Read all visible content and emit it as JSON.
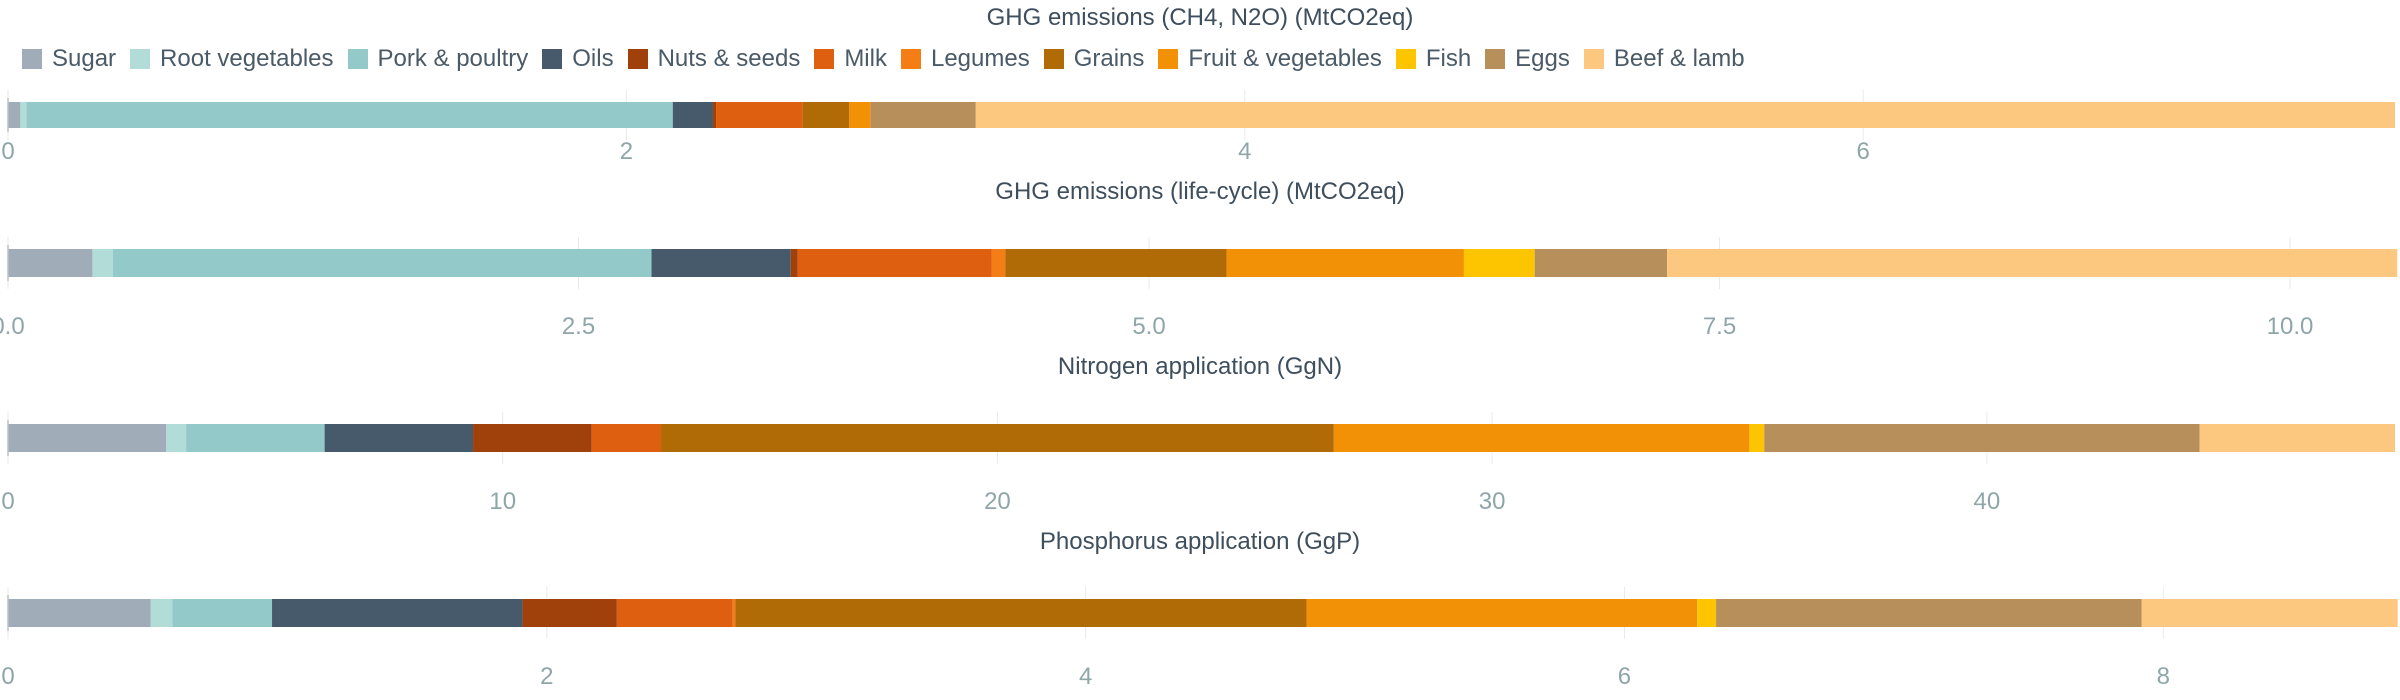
{
  "colors": {
    "Sugar": "#a0adb8",
    "Root vegetables": "#b2dcd8",
    "Pork & poultry": "#94c9c9",
    "Oils": "#465a6c",
    "Nuts & seeds": "#a0410b",
    "Milk": "#df5f10",
    "Legumes": "#f47d15",
    "Grains": "#b06b06",
    "Fruit & vegetables": "#f39106",
    "Fish": "#fcc500",
    "Eggs": "#b78f5a",
    "Beef & lamb": "#fcc87f"
  },
  "legend": [
    "Sugar",
    "Root vegetables",
    "Pork & poultry",
    "Oils",
    "Nuts & seeds",
    "Milk",
    "Legumes",
    "Grains",
    "Fruit & vegetables",
    "Fish",
    "Eggs",
    "Beef & lamb"
  ],
  "chart_data": [
    {
      "type": "bar",
      "orientation": "horizontal-stacked",
      "title": "GHG emissions (CH4, N2O) (MtCO2eq)",
      "xlim": [
        0,
        7.72
      ],
      "ticks": [
        0,
        2,
        4,
        6
      ],
      "tick_labels": [
        "0",
        "2",
        "4",
        "6"
      ],
      "series": [
        {
          "name": "Sugar",
          "value": 0.04
        },
        {
          "name": "Root vegetables",
          "value": 0.02
        },
        {
          "name": "Pork & poultry",
          "value": 2.09
        },
        {
          "name": "Oils",
          "value": 0.13
        },
        {
          "name": "Nuts & seeds",
          "value": 0.01
        },
        {
          "name": "Milk",
          "value": 0.28
        },
        {
          "name": "Legumes",
          "value": 0.0
        },
        {
          "name": "Grains",
          "value": 0.15
        },
        {
          "name": "Fruit & vegetables",
          "value": 0.07
        },
        {
          "name": "Fish",
          "value": 0.0
        },
        {
          "name": "Eggs",
          "value": 0.34
        },
        {
          "name": "Beef & lamb",
          "value": 4.59
        }
      ]
    },
    {
      "type": "bar",
      "orientation": "horizontal-stacked",
      "title": "GHG emissions (life-cycle) (MtCO2eq)",
      "xlim": [
        0,
        10.46
      ],
      "ticks": [
        0,
        2.5,
        5,
        7.5,
        10
      ],
      "tick_labels": [
        "0.0",
        "2.5",
        "5.0",
        "7.5",
        "10.0"
      ],
      "series": [
        {
          "name": "Sugar",
          "value": 0.37
        },
        {
          "name": "Root vegetables",
          "value": 0.09
        },
        {
          "name": "Pork & poultry",
          "value": 2.36
        },
        {
          "name": "Oils",
          "value": 0.61
        },
        {
          "name": "Nuts & seeds",
          "value": 0.03
        },
        {
          "name": "Milk",
          "value": 0.85
        },
        {
          "name": "Legumes",
          "value": 0.06
        },
        {
          "name": "Grains",
          "value": 0.97
        },
        {
          "name": "Fruit & vegetables",
          "value": 1.04
        },
        {
          "name": "Fish",
          "value": 0.31
        },
        {
          "name": "Eggs",
          "value": 0.58
        },
        {
          "name": "Beef & lamb",
          "value": 3.2
        }
      ]
    },
    {
      "type": "bar",
      "orientation": "horizontal-stacked",
      "title": "Nitrogen application (GgN)",
      "xlim": [
        0,
        48.25
      ],
      "ticks": [
        0,
        10,
        20,
        30,
        40
      ],
      "tick_labels": [
        "0",
        "10",
        "20",
        "30",
        "40"
      ],
      "series": [
        {
          "name": "Sugar",
          "value": 3.2
        },
        {
          "name": "Root vegetables",
          "value": 0.4
        },
        {
          "name": "Pork & poultry",
          "value": 2.8
        },
        {
          "name": "Oils",
          "value": 3.0
        },
        {
          "name": "Nuts & seeds",
          "value": 2.4
        },
        {
          "name": "Milk",
          "value": 1.4
        },
        {
          "name": "Legumes",
          "value": 0.0
        },
        {
          "name": "Grains",
          "value": 13.6
        },
        {
          "name": "Fruit & vegetables",
          "value": 8.4
        },
        {
          "name": "Fish",
          "value": 0.3
        },
        {
          "name": "Eggs",
          "value": 8.8
        },
        {
          "name": "Beef & lamb",
          "value": 3.95
        }
      ]
    },
    {
      "type": "bar",
      "orientation": "horizontal-stacked",
      "title": "Phosphorus application (GgP)",
      "xlim": [
        0,
        8.86
      ],
      "ticks": [
        0,
        2,
        4,
        6,
        8
      ],
      "tick_labels": [
        "0",
        "2",
        "4",
        "6",
        "8"
      ],
      "series": [
        {
          "name": "Sugar",
          "value": 0.53
        },
        {
          "name": "Root vegetables",
          "value": 0.08
        },
        {
          "name": "Pork & poultry",
          "value": 0.37
        },
        {
          "name": "Oils",
          "value": 0.93
        },
        {
          "name": "Nuts & seeds",
          "value": 0.35
        },
        {
          "name": "Milk",
          "value": 0.43
        },
        {
          "name": "Legumes",
          "value": 0.01
        },
        {
          "name": "Grains",
          "value": 2.12
        },
        {
          "name": "Fruit & vegetables",
          "value": 1.45
        },
        {
          "name": "Fish",
          "value": 0.07
        },
        {
          "name": "Eggs",
          "value": 1.58
        },
        {
          "name": "Beef & lamb",
          "value": 0.95
        }
      ]
    }
  ]
}
